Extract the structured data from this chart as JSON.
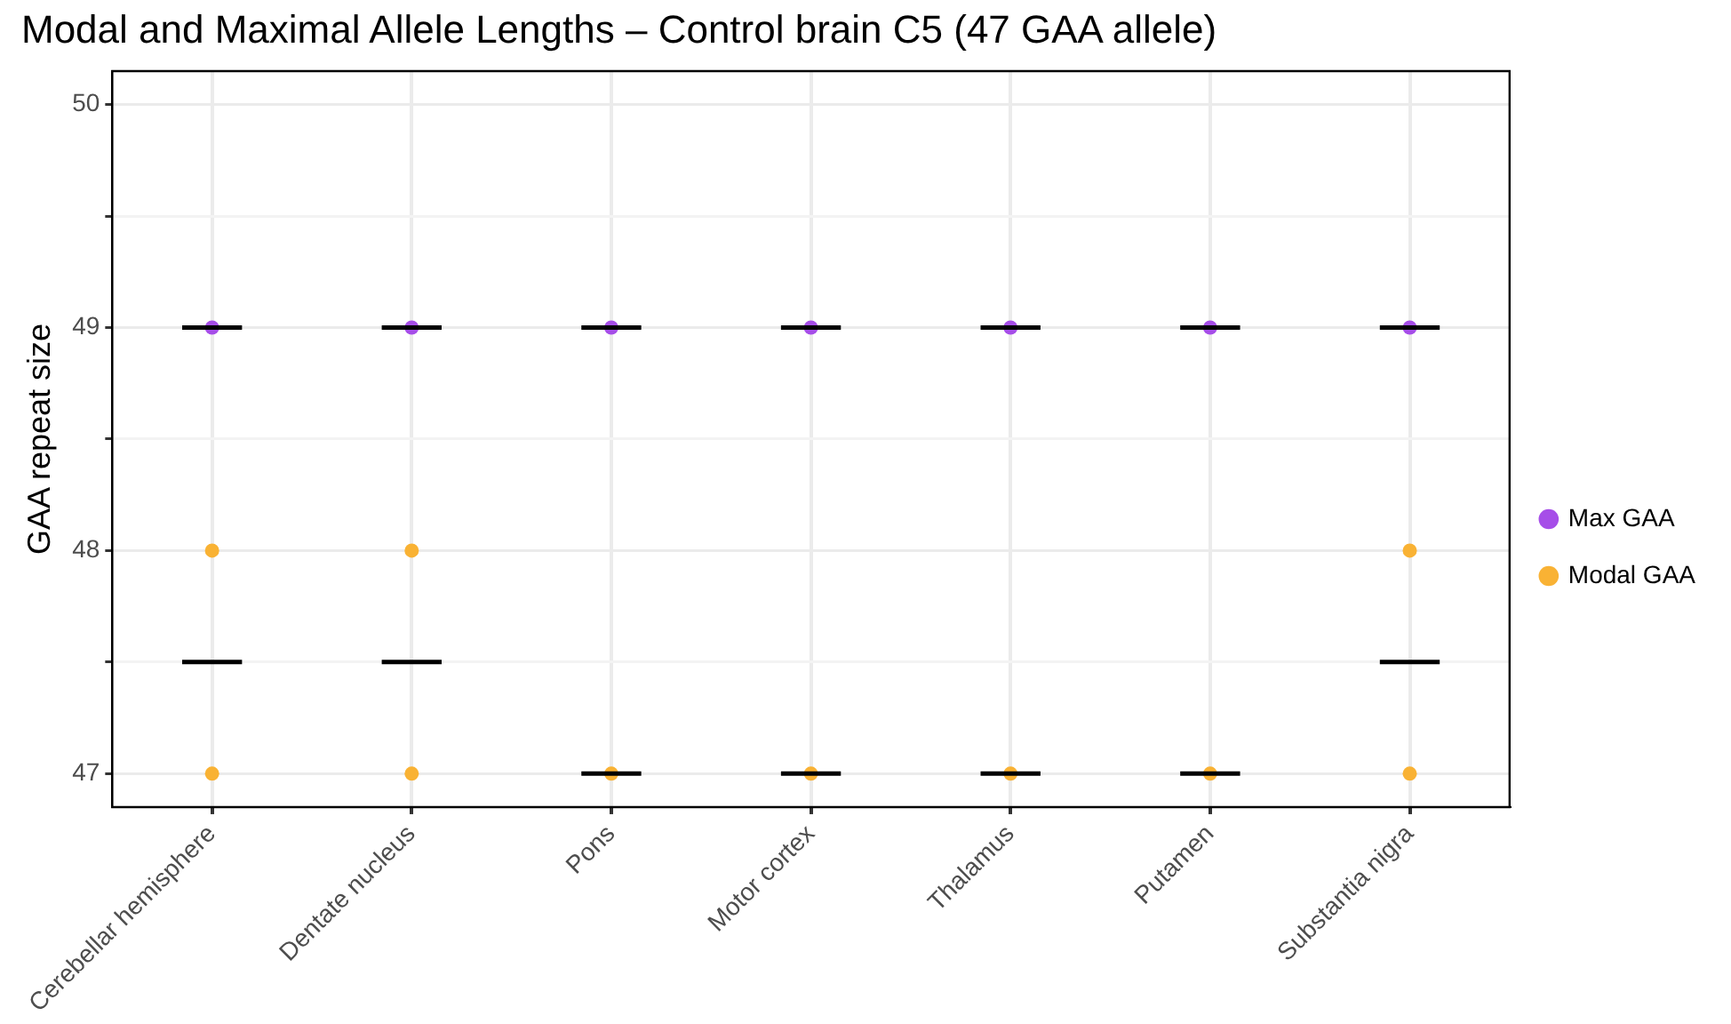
{
  "chart_data": {
    "type": "scatter",
    "title": "Modal and Maximal Allele Lengths – Control brain C5 (47 GAA allele)",
    "ylabel": "GAA repeat size",
    "categories": [
      "Cerebellar hemisphere",
      "Dentate nucleus",
      "Pons",
      "Motor cortex",
      "Thalamus",
      "Putamen",
      "Substantia nigra"
    ],
    "series": [
      {
        "type": "box",
        "color": "#000000",
        "boxes": [
          {
            "low": 49,
            "q1": 49,
            "median": 49,
            "q3": 49,
            "high": 49
          },
          {
            "low": 49,
            "q1": 49,
            "median": 49,
            "q3": 49,
            "high": 49
          },
          {
            "low": 49,
            "q1": 49,
            "median": 49,
            "q3": 49,
            "high": 49
          },
          {
            "low": 49,
            "q1": 49,
            "median": 49,
            "q3": 49,
            "high": 49
          },
          {
            "low": 49,
            "q1": 49,
            "median": 49,
            "q3": 49,
            "high": 49
          },
          {
            "low": 49,
            "q1": 49,
            "median": 49,
            "q3": 49,
            "high": 49
          },
          {
            "low": 49,
            "q1": 49,
            "median": 49,
            "q3": 49,
            "high": 49
          }
        ]
      },
      {
        "type": "box",
        "color": "#000000",
        "boxes": [
          {
            "low": 47.5,
            "q1": 47.5,
            "median": 47.5,
            "q3": 47.5,
            "high": 47.5
          },
          {
            "low": 47.5,
            "q1": 47.5,
            "median": 47.5,
            "q3": 47.5,
            "high": 47.5
          },
          {
            "low": 47,
            "q1": 47,
            "median": 47,
            "q3": 47,
            "high": 47
          },
          {
            "low": 47,
            "q1": 47,
            "median": 47,
            "q3": 47,
            "high": 47
          },
          {
            "low": 47,
            "q1": 47,
            "median": 47,
            "q3": 47,
            "high": 47
          },
          {
            "low": 47,
            "q1": 47,
            "median": 47,
            "q3": 47,
            "high": 47
          },
          {
            "low": 47.5,
            "q1": 47.5,
            "median": 47.5,
            "q3": 47.5,
            "high": 47.5
          }
        ]
      },
      {
        "name": "Max GAA",
        "color": "#a64ee8",
        "x": [
          "Cerebellar hemisphere",
          "Dentate nucleus",
          "Pons",
          "Motor cortex",
          "Thalamus",
          "Putamen",
          "Substantia nigra"
        ],
        "values": [
          49,
          49,
          49,
          49,
          49,
          49,
          49
        ]
      },
      {
        "name": "Modal GAA",
        "color": "#f9b234",
        "x": [
          "Cerebellar hemisphere",
          "Cerebellar hemisphere",
          "Dentate nucleus",
          "Dentate nucleus",
          "Pons",
          "Motor cortex",
          "Thalamus",
          "Putamen",
          "Substantia nigra",
          "Substantia nigra"
        ],
        "values": [
          48,
          47,
          48,
          47,
          47,
          47,
          47,
          47,
          48,
          47
        ]
      }
    ],
    "ylim": [
      46.85,
      50.15
    ],
    "yticks": [
      47,
      {
        "value": 47.5,
        "label": null
      },
      48,
      {
        "value": 48.5,
        "label": null
      },
      49,
      {
        "value": 49.5,
        "label": null
      },
      50
    ],
    "grid": true,
    "legend": "right",
    "marker": "circle"
  }
}
